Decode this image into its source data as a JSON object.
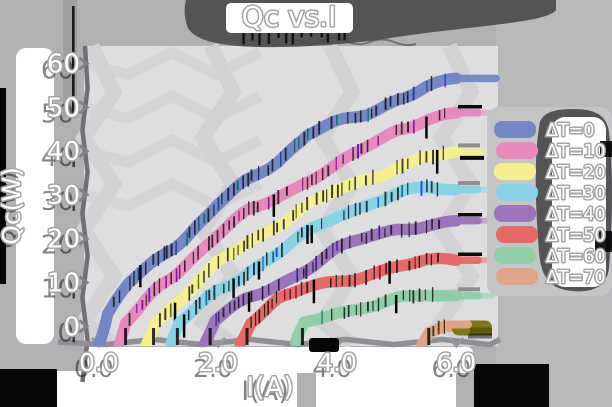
{
  "title": "Qc vs.I",
  "x_axis": {
    "label": "I(A)",
    "ticks": [
      "0.0",
      "2.0",
      "4.0",
      "6.0"
    ]
  },
  "y_axis": {
    "label": "Qc(W)",
    "ticks": [
      "0",
      "10",
      "20",
      "30",
      "40",
      "50",
      "60"
    ]
  },
  "legend": {
    "items": [
      {
        "label": "ΔT=0",
        "color": "#7486c3"
      },
      {
        "label": "ΔT=10",
        "color": "#e689bb"
      },
      {
        "label": "ΔT=20",
        "color": "#f4ef90"
      },
      {
        "label": "ΔT=30",
        "color": "#89d2e6"
      },
      {
        "label": "ΔT=40",
        "color": "#9b74b9"
      },
      {
        "label": "ΔT=50",
        "color": "#e46a6a"
      },
      {
        "label": "ΔT=60",
        "color": "#90cfaa"
      },
      {
        "label": "ΔT=70",
        "color": "#dda487"
      }
    ]
  },
  "style": {
    "figure_bg": "#b1b1b4",
    "panel_bg": "#dedee0",
    "grid_color": "#d2d2d5",
    "charcoal_blob": "#545457",
    "text_outline": "#a4a4a7",
    "olive_cap": "#7c7913"
  },
  "chart_data": {
    "type": "line",
    "title": "Qc vs.I",
    "xlabel": "I(A)",
    "ylabel": "Qc(W)",
    "xlim": [
      -0.25,
      6.7
    ],
    "ylim": [
      -4.5,
      64
    ],
    "x_ticks": [
      0,
      2,
      4,
      6
    ],
    "y_ticks": [
      0,
      10,
      20,
      30,
      40,
      50,
      60
    ],
    "grid": true,
    "legend_position": "center right",
    "series": [
      {
        "name": "ΔT=0",
        "color": "#7486c3",
        "marker_accents": [
          "#0c6f66",
          "#2c3d9b"
        ],
        "points": [
          [
            0,
            -4.5
          ],
          [
            0.15,
            3
          ],
          [
            0.5,
            9.5
          ],
          [
            1,
            15.5
          ],
          [
            2,
            28
          ],
          [
            2.5,
            33
          ],
          [
            3,
            37.5
          ],
          [
            3.5,
            43.5
          ],
          [
            4,
            46
          ],
          [
            4.5,
            48.5
          ],
          [
            5,
            52.5
          ],
          [
            5.5,
            55.2
          ],
          [
            6,
            56.3
          ]
        ]
      },
      {
        "name": "ΔT=10",
        "color": "#e689bb",
        "marker_accents": [
          "#5b21b6",
          "#86198f"
        ],
        "points": [
          [
            0.33,
            -4.5
          ],
          [
            0.45,
            1
          ],
          [
            1,
            9
          ],
          [
            1.5,
            15
          ],
          [
            2,
            20.5
          ],
          [
            2.5,
            25.5
          ],
          [
            3,
            29.5
          ],
          [
            3.5,
            33.5
          ],
          [
            4,
            36.8
          ],
          [
            4.5,
            41.5
          ],
          [
            5,
            45.4
          ],
          [
            5.5,
            47.2
          ],
          [
            6,
            47.8
          ]
        ]
      },
      {
        "name": "ΔT=20",
        "color": "#f4ef90",
        "marker_accents": [
          "#4d7c0f",
          "#374151"
        ],
        "points": [
          [
            0.8,
            -4.5
          ],
          [
            0.95,
            1.5
          ],
          [
            1.5,
            8.5
          ],
          [
            2,
            14.2
          ],
          [
            2.5,
            18.8
          ],
          [
            3,
            23
          ],
          [
            3.5,
            27
          ],
          [
            4,
            30.8
          ],
          [
            4.5,
            34
          ],
          [
            5,
            37
          ],
          [
            5.5,
            38.8
          ],
          [
            6,
            39.4
          ]
        ]
      },
      {
        "name": "ΔT=30",
        "color": "#89d2e6",
        "marker_accents": [
          "#1d4ed8",
          "#0e7490"
        ],
        "points": [
          [
            1.2,
            -4.5
          ],
          [
            1.35,
            0.5
          ],
          [
            2,
            8.4
          ],
          [
            2.5,
            13
          ],
          [
            3,
            17
          ],
          [
            3.5,
            21
          ],
          [
            4,
            24.9
          ],
          [
            4.5,
            27.6
          ],
          [
            5,
            29.9
          ],
          [
            5.5,
            31.2
          ],
          [
            6,
            31.6
          ]
        ]
      },
      {
        "name": "ΔT=40",
        "color": "#9b74b9",
        "marker_accents": [
          "#4c1d95",
          "#312e81"
        ],
        "points": [
          [
            1.75,
            -4.5
          ],
          [
            1.95,
            1.5
          ],
          [
            2.5,
            6.5
          ],
          [
            3,
            10
          ],
          [
            3.5,
            13.5
          ],
          [
            4,
            17.1
          ],
          [
            4.5,
            19.8
          ],
          [
            5,
            22
          ],
          [
            5.5,
            23.1
          ],
          [
            6,
            23.6
          ]
        ]
      },
      {
        "name": "ΔT=50",
        "color": "#e46a6a",
        "marker_accents": [
          "#991b1b",
          "#7f1d1d"
        ],
        "points": [
          [
            2.37,
            -4.5
          ],
          [
            2.55,
            1
          ],
          [
            3,
            5.5
          ],
          [
            3.5,
            8.4
          ],
          [
            4,
            10.5
          ],
          [
            4.5,
            12.5
          ],
          [
            5,
            13.9
          ],
          [
            5.5,
            14.9
          ],
          [
            6,
            15.2
          ]
        ]
      },
      {
        "name": "ΔT=60",
        "color": "#90cfaa",
        "marker_accents": [
          "#0f766e",
          "#1e40af"
        ],
        "points": [
          [
            3.3,
            -4.5
          ],
          [
            3.45,
            0
          ],
          [
            4,
            2.8
          ],
          [
            4.5,
            4.8
          ],
          [
            5,
            6.2
          ],
          [
            5.5,
            7.1
          ],
          [
            6,
            7.4
          ]
        ]
      },
      {
        "name": "ΔT=70",
        "color": "#dda487",
        "marker_accents": [
          "#7c2d12",
          "#713f12"
        ],
        "points": [
          [
            5.42,
            -4.5
          ],
          [
            5.55,
            -0.5
          ],
          [
            5.8,
            0.9
          ],
          [
            6,
            0.7
          ]
        ]
      }
    ]
  }
}
